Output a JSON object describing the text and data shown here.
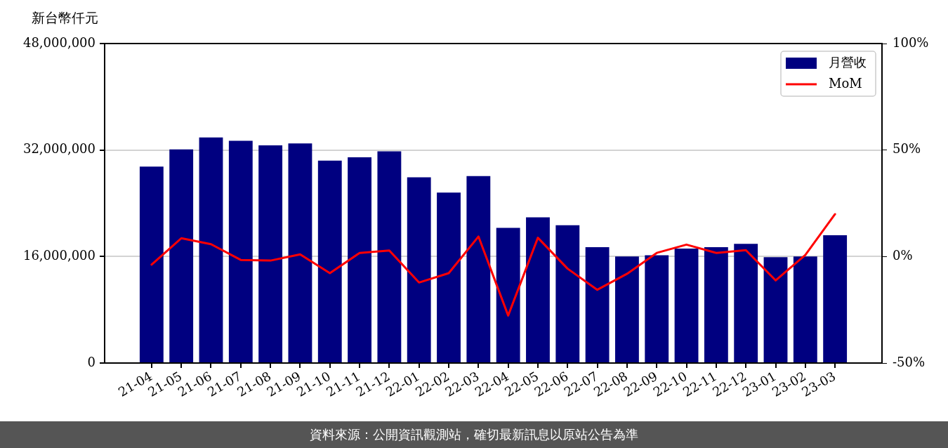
{
  "chart_data": {
    "type": "bar",
    "ylabel": "新台幣仟元",
    "annotations": [
      "資料來源：公開資訊觀測站，確切最新訊息以原站公告為準"
    ],
    "categories": [
      "21-04",
      "21-05",
      "21-06",
      "21-07",
      "21-08",
      "21-09",
      "21-10",
      "21-11",
      "21-12",
      "22-01",
      "22-02",
      "22-03",
      "22-04",
      "22-05",
      "22-06",
      "22-07",
      "22-08",
      "22-09",
      "22-10",
      "22-11",
      "22-12",
      "23-01",
      "23-02",
      "23-03"
    ],
    "series": [
      {
        "name": "月營收",
        "color": "#000080",
        "values": [
          29500000,
          32100000,
          33900000,
          33400000,
          32700000,
          33000000,
          30400000,
          30900000,
          31800000,
          27900000,
          25600000,
          28100000,
          20300000,
          21900000,
          20700000,
          17400000,
          16000000,
          16200000,
          17200000,
          17400000,
          17900000,
          15900000,
          16000000,
          19200000
        ]
      },
      {
        "name": "MoM",
        "type": "line",
        "color": "#ff0000",
        "axis": "y2",
        "values": [
          -3.8,
          8.6,
          5.8,
          -1.6,
          -1.9,
          1.0,
          -7.8,
          1.7,
          2.8,
          -12.2,
          -7.8,
          9.4,
          -27.7,
          8.8,
          -5.7,
          -15.6,
          -8.1,
          1.7,
          5.6,
          1.7,
          3.0,
          -11.2,
          0.7,
          19.9
        ]
      }
    ],
    "ylim": [
      0,
      48000000
    ],
    "yticks": [
      0,
      {
        "value": 16000000,
        "label": "16,000,000"
      },
      {
        "value": 32000000,
        "label": "32,000,000"
      },
      {
        "value": 48000000,
        "label": "48,000,000"
      }
    ],
    "y2lim": [
      -50,
      100
    ],
    "y2ticks": [
      {
        "value": -50,
        "label": "-50%"
      },
      {
        "value": 0,
        "label": "0%"
      },
      {
        "value": 50,
        "label": "50%"
      },
      {
        "value": 100,
        "label": "100%"
      }
    ],
    "grid": "y",
    "legend": "top right"
  }
}
